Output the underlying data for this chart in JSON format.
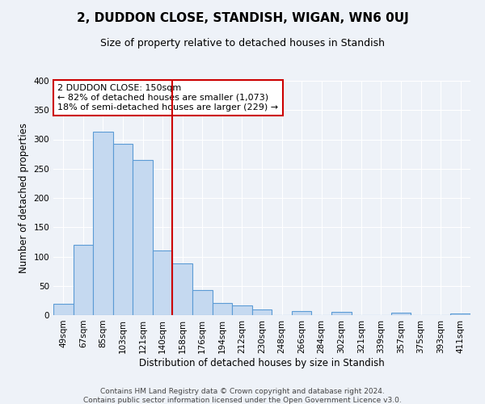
{
  "title": "2, DUDDON CLOSE, STANDISH, WIGAN, WN6 0UJ",
  "subtitle": "Size of property relative to detached houses in Standish",
  "xlabel": "Distribution of detached houses by size in Standish",
  "ylabel": "Number of detached properties",
  "bar_labels": [
    "49sqm",
    "67sqm",
    "85sqm",
    "103sqm",
    "121sqm",
    "140sqm",
    "158sqm",
    "176sqm",
    "194sqm",
    "212sqm",
    "230sqm",
    "248sqm",
    "266sqm",
    "284sqm",
    "302sqm",
    "321sqm",
    "339sqm",
    "357sqm",
    "375sqm",
    "393sqm",
    "411sqm"
  ],
  "bar_values": [
    20,
    120,
    313,
    293,
    265,
    111,
    88,
    43,
    21,
    17,
    9,
    0,
    7,
    0,
    5,
    0,
    0,
    4,
    0,
    0,
    3
  ],
  "bar_color": "#c5d9f0",
  "bar_edge_color": "#5b9bd5",
  "vline_color": "#cc0000",
  "annotation_title": "2 DUDDON CLOSE: 150sqm",
  "annotation_line1": "← 82% of detached houses are smaller (1,073)",
  "annotation_line2": "18% of semi-detached houses are larger (229) →",
  "annotation_box_facecolor": "#ffffff",
  "annotation_box_edgecolor": "#cc0000",
  "footer1": "Contains HM Land Registry data © Crown copyright and database right 2024.",
  "footer2": "Contains public sector information licensed under the Open Government Licence v3.0.",
  "ylim": [
    0,
    400
  ],
  "yticks": [
    0,
    50,
    100,
    150,
    200,
    250,
    300,
    350,
    400
  ],
  "background_color": "#eef2f8",
  "grid_color": "#ffffff",
  "title_fontsize": 11,
  "subtitle_fontsize": 9,
  "tick_fontsize": 7.5,
  "ylabel_fontsize": 8.5,
  "xlabel_fontsize": 8.5,
  "footer_fontsize": 6.5
}
